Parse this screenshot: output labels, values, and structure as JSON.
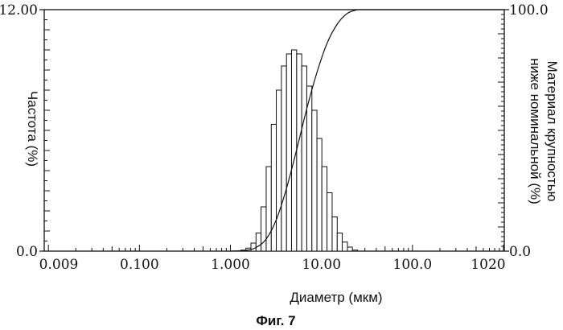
{
  "chart_data": {
    "type": "bar",
    "title": "",
    "caption": "Фиг. 7",
    "xlabel": "Диаметр (мкм)",
    "ylabel_left": "Частота (%)",
    "ylabel_right_line1": "Материал крупностью",
    "ylabel_right_line2": "ниже номинальной (%)",
    "x_scale": "log",
    "xlim": [
      0.009,
      1020
    ],
    "x_ticks": [
      {
        "value": 0.009,
        "label": "0.009"
      },
      {
        "value": 0.1,
        "label": "0.100"
      },
      {
        "value": 1,
        "label": "1.000"
      },
      {
        "value": 10,
        "label": "10.00"
      },
      {
        "value": 100,
        "label": "100.0"
      },
      {
        "value": 1020,
        "label": "1020"
      }
    ],
    "ylim_left": [
      0,
      12
    ],
    "y_left_ticks": [
      {
        "value": 0,
        "label": "0.0"
      },
      {
        "value": 12,
        "label": "12.00"
      }
    ],
    "ylim_right": [
      0,
      100
    ],
    "y_right_ticks": [
      {
        "value": 0,
        "label": "0.0"
      },
      {
        "value": 100,
        "label": "100.0"
      }
    ],
    "grid": false,
    "histogram": {
      "bin_edges": [
        1.3,
        1.48,
        1.68,
        1.91,
        2.17,
        2.47,
        2.81,
        3.19,
        3.63,
        4.13,
        4.69,
        5.34,
        6.07,
        6.9,
        7.85,
        8.92,
        10.1,
        11.5,
        13.1,
        14.9,
        16.9,
        19.3,
        21.9,
        24.9
      ],
      "values": [
        0.05,
        0.15,
        0.4,
        0.9,
        2.2,
        4.2,
        6.3,
        8.0,
        9.2,
        9.8,
        10.0,
        9.8,
        9.2,
        8.2,
        7.0,
        5.6,
        4.2,
        2.9,
        1.7,
        0.9,
        0.45,
        0.2,
        0.05
      ]
    },
    "cumulative": {
      "name": "",
      "x": [
        1.0,
        1.48,
        1.91,
        2.47,
        3.19,
        4.13,
        5.34,
        6.9,
        8.92,
        11.5,
        14.9,
        19.3,
        24.9
      ],
      "y": [
        0,
        0.3,
        1.5,
        5,
        13,
        26,
        42,
        59,
        74,
        86,
        94,
        98.5,
        100
      ]
    }
  }
}
